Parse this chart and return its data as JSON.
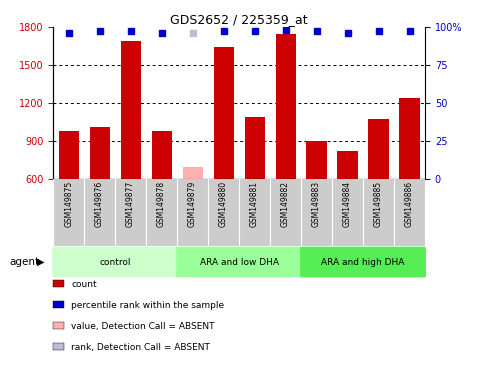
{
  "title": "GDS2652 / 225359_at",
  "samples": [
    "GSM149875",
    "GSM149876",
    "GSM149877",
    "GSM149878",
    "GSM149879",
    "GSM149880",
    "GSM149881",
    "GSM149882",
    "GSM149883",
    "GSM149884",
    "GSM149885",
    "GSM149886"
  ],
  "bar_values": [
    975,
    1010,
    1690,
    975,
    null,
    1640,
    1090,
    1740,
    900,
    820,
    1070,
    1240
  ],
  "absent_bar_value": 690,
  "absent_bar_index": 4,
  "percentile_values": [
    96,
    97,
    97,
    96,
    null,
    97,
    97,
    98,
    97,
    96,
    97,
    97
  ],
  "absent_rank_value": 96,
  "absent_rank_index": 4,
  "bar_color": "#CC0000",
  "absent_bar_color": "#FFB0B0",
  "dot_color": "#0000CC",
  "absent_dot_color": "#BBBBDD",
  "ylim_left": [
    600,
    1800
  ],
  "ylim_right": [
    0,
    100
  ],
  "yticks_left": [
    600,
    900,
    1200,
    1500,
    1800
  ],
  "yticks_right": [
    0,
    25,
    50,
    75,
    100
  ],
  "groups": [
    {
      "label": "control",
      "start": 0,
      "end": 3,
      "color": "#CCFFCC"
    },
    {
      "label": "ARA and low DHA",
      "start": 4,
      "end": 7,
      "color": "#99FF99"
    },
    {
      "label": "ARA and high DHA",
      "start": 8,
      "end": 11,
      "color": "#55EE55"
    }
  ],
  "agent_label": "agent",
  "legend_items": [
    {
      "label": "count",
      "color": "#CC0000"
    },
    {
      "label": "percentile rank within the sample",
      "color": "#0000CC"
    },
    {
      "label": "value, Detection Call = ABSENT",
      "color": "#FFB0B0"
    },
    {
      "label": "rank, Detection Call = ABSENT",
      "color": "#BBBBDD"
    }
  ],
  "background_color": "#FFFFFF",
  "tick_area_color": "#CCCCCC"
}
